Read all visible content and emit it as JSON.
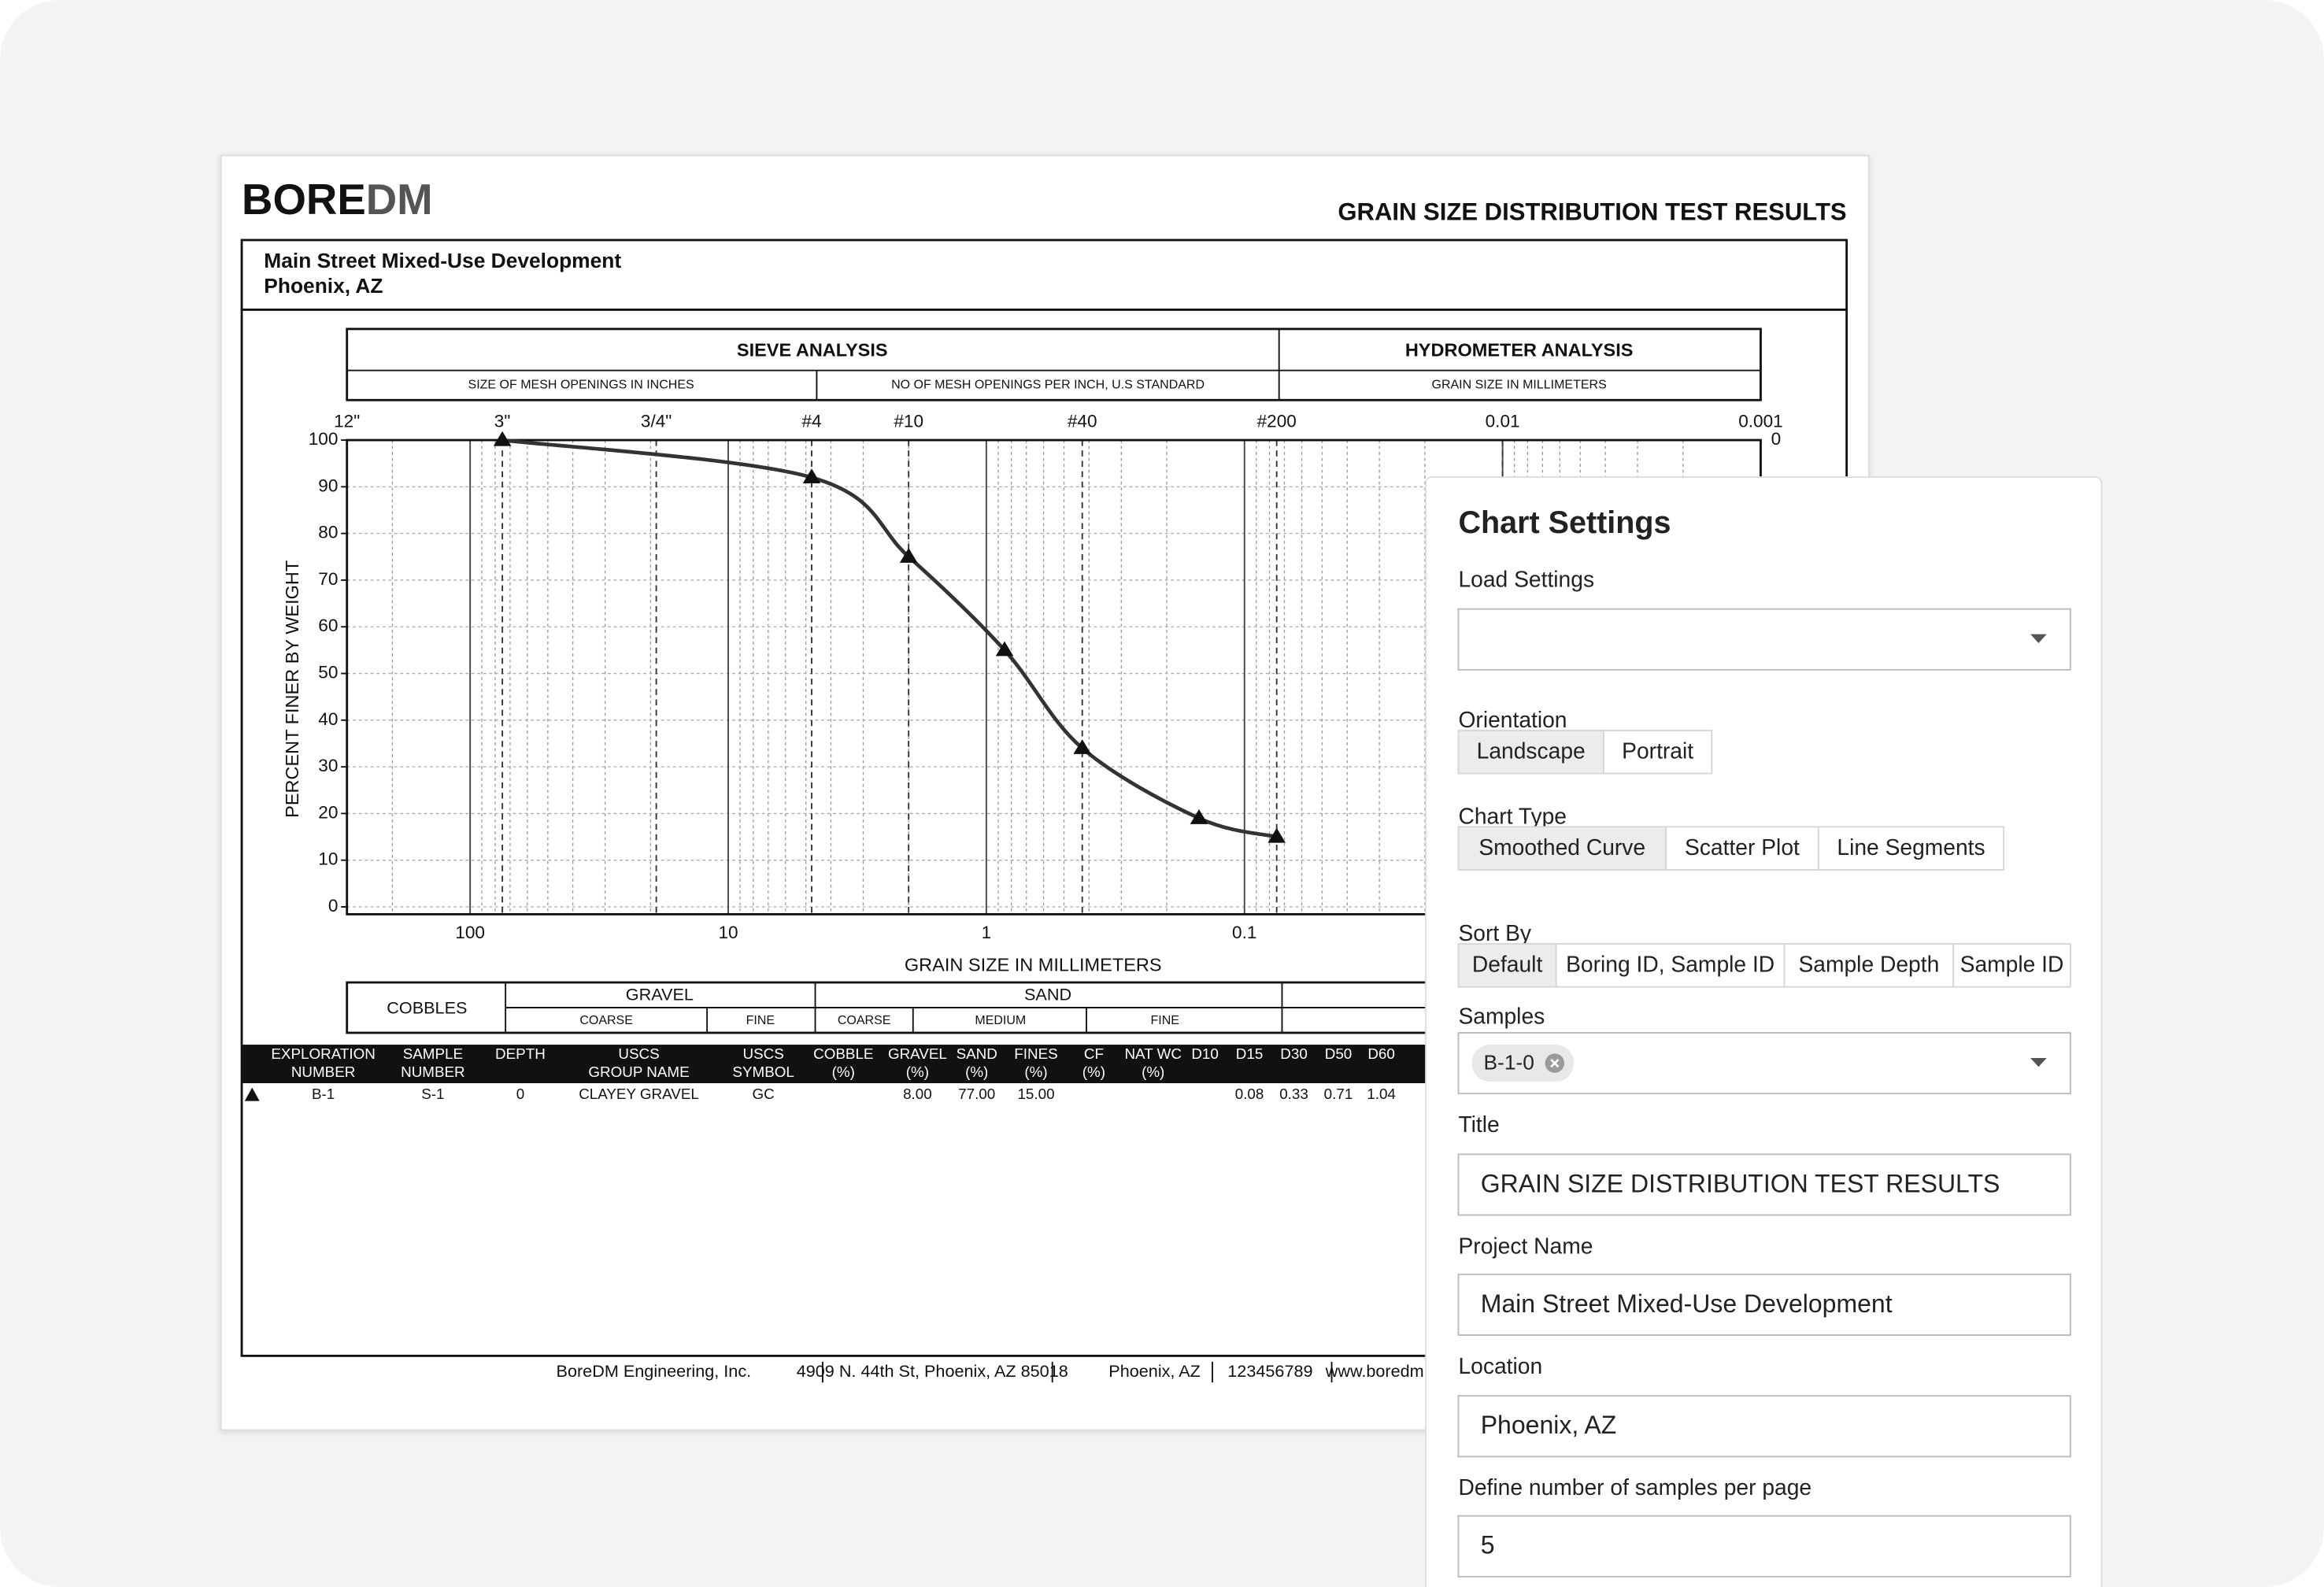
{
  "header": {
    "logo_bold": "BORE",
    "logo_light": "DM",
    "title": "GRAIN SIZE DISTRIBUTION TEST RESULTS",
    "project": "Main Street Mixed-Use Development",
    "location": "Phoenix, AZ"
  },
  "analysis_header": {
    "sieve": "SIEVE ANALYSIS",
    "hydrometer": "HYDROMETER ANALYSIS",
    "sieve_inches": "SIZE OF MESH OPENINGS IN INCHES",
    "sieve_number": "NO OF MESH OPENINGS PER INCH, U.S STANDARD",
    "hydrometer_mm": "GRAIN SIZE IN MILLIMETERS"
  },
  "chart": {
    "type": "line",
    "smoothed": true,
    "log_x": true,
    "color": "#333333",
    "xlabel": "GRAIN SIZE IN MILLIMETERS",
    "ylabel": "PERCENT FINER BY WEIGHT",
    "x": [
      75,
      4.75,
      2,
      0.85,
      0.425,
      0.15,
      0.075
    ],
    "values": [
      100,
      92,
      75,
      55,
      34,
      19,
      15
    ],
    "xlim": [
      300,
      0.001
    ],
    "ylim": [
      0,
      100
    ],
    "xticks": [
      100,
      10,
      1,
      0.1,
      0.01,
      0.001
    ],
    "yticks": [
      0,
      10,
      20,
      30,
      40,
      50,
      60,
      70,
      80,
      90,
      100
    ],
    "y2lim": [
      100,
      0
    ],
    "y2ticks": [
      0
    ],
    "sieve_ticks": [
      {
        "value": 300,
        "label": "12\""
      },
      {
        "value": 75,
        "label": "3\""
      },
      {
        "value": 19,
        "label": "3/4\""
      },
      {
        "value": 4.75,
        "label": "#4"
      },
      {
        "value": 2,
        "label": "#10"
      },
      {
        "value": 0.425,
        "label": "#40"
      },
      {
        "value": 0.075,
        "label": "#200"
      },
      0.01,
      0.001
    ],
    "grid": true
  },
  "classification": {
    "cobbles": "COBBLES",
    "gravel": "GRAVEL",
    "gravel_coarse": "COARSE",
    "gravel_fine": "FINE",
    "sand": "SAND",
    "sand_coarse": "COARSE",
    "sand_medium": "MEDIUM",
    "sand_fine": "FINE"
  },
  "table": {
    "headers": [
      [
        "EXPLORATION",
        "NUMBER"
      ],
      [
        "SAMPLE",
        "NUMBER"
      ],
      [
        "DEPTH"
      ],
      [
        "USCS",
        "GROUP NAME"
      ],
      [
        "USCS",
        "SYMBOL"
      ],
      [
        "COBBLE",
        "(%)"
      ],
      [
        "GRAVEL",
        "(%)"
      ],
      [
        "SAND",
        "(%)"
      ],
      [
        "FINES",
        "(%)"
      ],
      [
        "CF",
        "(%)"
      ],
      [
        "NAT WC",
        "(%)"
      ],
      [
        "D10"
      ],
      [
        "D15"
      ],
      [
        "D30"
      ],
      [
        "D50"
      ],
      [
        "D60"
      ]
    ],
    "rows": [
      [
        "B-1",
        "S-1",
        "0",
        "CLAYEY GRAVEL",
        "GC",
        null,
        "8.00",
        "77.00",
        "15.00",
        null,
        null,
        null,
        "0.08",
        "0.33",
        "0.71",
        "1.04"
      ]
    ]
  },
  "footer": [
    "BoreDM Engineering, Inc.",
    "4909 N. 44th St, Phoenix, AZ 85018",
    "Phoenix, AZ",
    "123456789",
    "www.boredm.com"
  ],
  "settings": {
    "title": "Chart Settings",
    "load_settings": {
      "label": "Load Settings"
    },
    "orientation": {
      "label": "Orientation",
      "options": [
        "Landscape",
        "Portrait"
      ],
      "selected": 0
    },
    "chart_type": {
      "label": "Chart Type",
      "options": [
        "Smoothed Curve",
        "Scatter Plot",
        "Line Segments"
      ],
      "selected": 0
    },
    "sort_by": {
      "label": "Sort By",
      "options": [
        "Default",
        "Boring ID, Sample ID",
        "Sample Depth",
        "Sample ID"
      ],
      "selected": 0
    },
    "samples": {
      "label": "Samples",
      "chips": [
        "B-1-0"
      ]
    },
    "title_field": {
      "label": "Title",
      "value": "GRAIN SIZE DISTRIBUTION TEST RESULTS"
    },
    "project_name": {
      "label": "Project Name",
      "value": "Main Street Mixed-Use Development"
    },
    "location": {
      "label": "Location",
      "value": "Phoenix, AZ"
    },
    "samples_per_page": {
      "label": "Define number of samples per page",
      "value": "5"
    }
  }
}
